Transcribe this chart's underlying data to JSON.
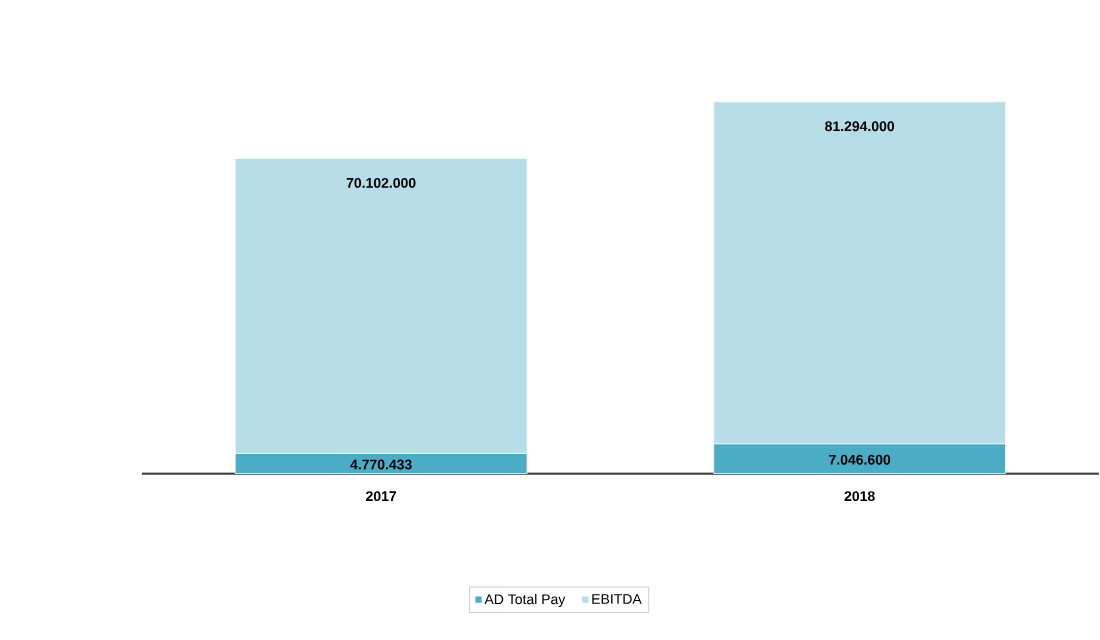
{
  "chart_data": {
    "type": "bar",
    "stacked": true,
    "legend": "bottom",
    "categories": [
      "2017",
      "2018"
    ],
    "series": [
      {
        "name": "AD Total Pay",
        "color": "#4bacc6",
        "values": [
          4770433,
          7046600
        ],
        "value_labels": [
          "4.770.433",
          "7.046.600"
        ]
      },
      {
        "name": "EBITDA",
        "color": "#b7dde8",
        "values": [
          70102000,
          81294000
        ],
        "value_labels": [
          "70.102.000",
          "81.294.000"
        ]
      }
    ]
  }
}
